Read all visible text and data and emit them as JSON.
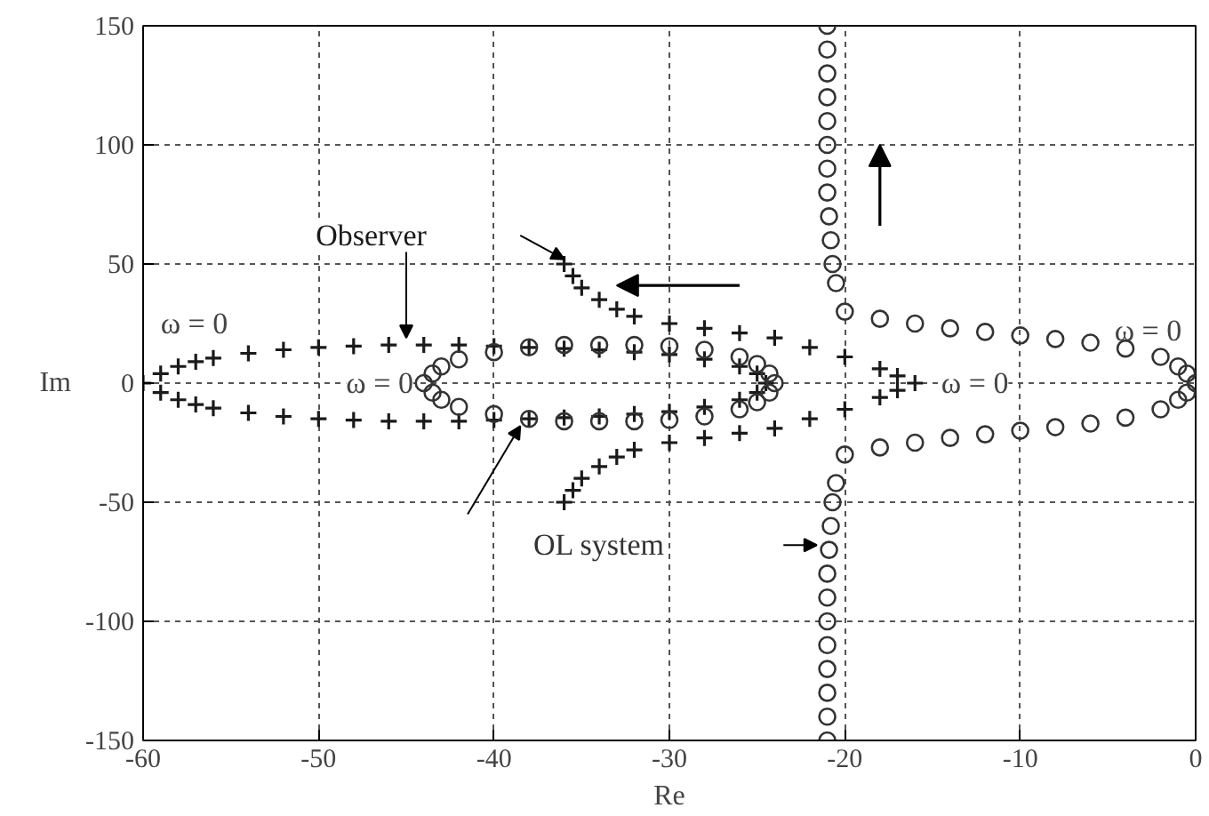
{
  "chart_data": {
    "type": "scatter",
    "xlabel": "Re",
    "ylabel": "Im",
    "xlim": [
      -60,
      0
    ],
    "ylim": [
      -150,
      150
    ],
    "xticks": [
      -60,
      -50,
      -40,
      -30,
      -20,
      -10,
      0
    ],
    "yticks": [
      -150,
      -100,
      -50,
      0,
      50,
      100,
      150
    ],
    "grid": true,
    "series": [
      {
        "name": "Observer",
        "color": "#1a1a1a",
        "marker": "cross",
        "x": [
          -60,
          -59,
          -58,
          -57,
          -56,
          -54,
          -52,
          -50,
          -48,
          -46,
          -44,
          -42,
          -40,
          -38,
          -36,
          -34,
          -32,
          -30,
          -28,
          -26,
          -25,
          -24.5,
          -25,
          -26,
          -28,
          -30,
          -32,
          -34,
          -36,
          -38,
          -40,
          -42,
          -44,
          -46,
          -48,
          -50,
          -52,
          -54,
          -56,
          -57,
          -58,
          -59,
          -36,
          -35.5,
          -35,
          -34,
          -33,
          -32,
          -30,
          -28,
          -26,
          -24,
          -22,
          -20,
          -18,
          -17,
          -16,
          -17,
          -18,
          -20,
          -22,
          -24,
          -26,
          -28,
          -30,
          -32,
          -33,
          -34,
          -35,
          -35.5,
          -36
        ],
        "values": [
          0,
          4,
          7,
          9,
          10.5,
          12.5,
          14,
          15,
          15.5,
          16,
          16,
          16,
          15.5,
          15,
          14.5,
          14,
          13,
          12,
          10,
          7,
          4,
          0,
          -4,
          -7,
          -10,
          -12,
          -13,
          -14,
          -14.5,
          -15,
          -15.5,
          -16,
          -16,
          -16,
          -15.5,
          -15,
          -14,
          -12.5,
          -10.5,
          -9,
          -7,
          -4,
          50,
          45,
          40,
          35,
          31,
          28,
          25,
          23,
          21,
          19,
          15,
          11,
          6,
          3,
          0,
          -3,
          -6,
          -11,
          -15,
          -19,
          -21,
          -23,
          -25,
          -28,
          -31,
          -35,
          -40,
          -45,
          -50
        ]
      },
      {
        "name": "OL system",
        "color": "#333333",
        "marker": "circle",
        "x": [
          -44,
          -43.5,
          -43,
          -42,
          -40,
          -38,
          -36,
          -34,
          -32,
          -30,
          -28,
          -26,
          -25,
          -24.3,
          -24,
          -24.3,
          -25,
          -26,
          -28,
          -30,
          -32,
          -34,
          -36,
          -38,
          -40,
          -42,
          -43,
          -43.5,
          -21,
          -21,
          -21,
          -21,
          -21,
          -21,
          -21,
          -21,
          -20.9,
          -20.8,
          -20.7,
          -20.5,
          -20,
          -18,
          -16,
          -14,
          -12,
          -10,
          -8,
          -6,
          -4,
          -2,
          -1,
          -0.5,
          0,
          -0.5,
          -1,
          -2,
          -4,
          -6,
          -8,
          -10,
          -12,
          -14,
          -16,
          -18,
          -20,
          -20.5,
          -20.7,
          -20.8,
          -20.9,
          -21,
          -21,
          -21,
          -21,
          -21,
          -21,
          -21,
          -21
        ],
        "values": [
          0,
          4,
          7,
          10,
          13,
          15,
          16,
          16,
          16,
          15.5,
          14,
          11,
          8,
          4,
          0,
          -4,
          -8,
          -11,
          -14,
          -15.5,
          -16,
          -16,
          -16,
          -15,
          -13,
          -10,
          -7,
          -4,
          150,
          140,
          130,
          120,
          110,
          100,
          90,
          80,
          70,
          60,
          50,
          42,
          30,
          27,
          25,
          23,
          21.5,
          20,
          18.5,
          17,
          14.5,
          11,
          7,
          4,
          0,
          -4,
          -7,
          -11,
          -14.5,
          -17,
          -18.5,
          -20,
          -21.5,
          -23,
          -25,
          -27,
          -30,
          -42,
          -50,
          -60,
          -70,
          -80,
          -90,
          -100,
          -110,
          -120,
          -130,
          -140,
          -150
        ]
      }
    ],
    "annotations": [
      "ω = 0",
      "ω = 0",
      "ω = 0",
      "ω = 0"
    ]
  }
}
